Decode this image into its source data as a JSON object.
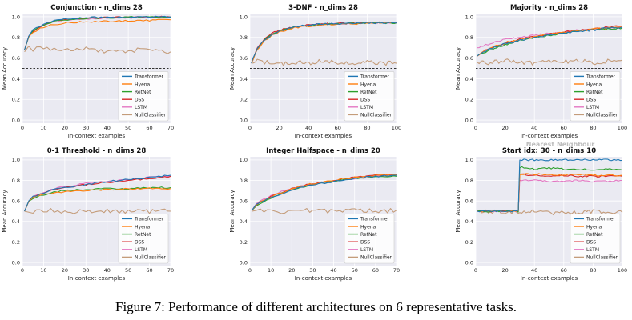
{
  "figure": {
    "caption": "Figure 7:  Performance of different architectures on 6 representative tasks.",
    "overlap_text": "Nearest Neighbour"
  },
  "series_styles": [
    {
      "name": "Transformer",
      "color": "#1f77b4"
    },
    {
      "name": "Hyena",
      "color": "#ff7f0e"
    },
    {
      "name": "RetNet",
      "color": "#2ca02c"
    },
    {
      "name": "DSS",
      "color": "#d62728"
    },
    {
      "name": "LSTM",
      "color": "#e377c2"
    },
    {
      "name": "NullClassifier",
      "color": "#c49c7a"
    }
  ],
  "chart_data": [
    {
      "type": "line",
      "title": "Conjunction - n_dims 28",
      "xlabel": "In-context examples",
      "ylabel": "Mean Accuracy",
      "xlim": [
        0,
        70
      ],
      "ylim": [
        -0.03,
        1.03
      ],
      "xticks": [
        0,
        10,
        20,
        30,
        40,
        50,
        60,
        70
      ],
      "yticks": [
        "0.0",
        "0.2",
        "0.4",
        "0.6",
        "0.8",
        "1.0"
      ],
      "baseline": 0.5,
      "legend": "lower-right",
      "x": [
        1,
        3,
        5,
        10,
        15,
        20,
        30,
        40,
        50,
        60,
        70
      ],
      "series": [
        {
          "name": "Transformer",
          "values": [
            0.68,
            0.82,
            0.87,
            0.93,
            0.96,
            0.975,
            0.99,
            0.995,
            0.995,
            0.998,
            0.998
          ]
        },
        {
          "name": "Hyena",
          "values": [
            0.68,
            0.8,
            0.85,
            0.9,
            0.925,
            0.94,
            0.95,
            0.955,
            0.96,
            0.965,
            0.97
          ]
        },
        {
          "name": "RetNet",
          "values": [
            0.68,
            0.81,
            0.86,
            0.92,
            0.95,
            0.97,
            0.985,
            0.99,
            0.995,
            0.995,
            0.995
          ]
        },
        {
          "name": "DSS",
          "values": [
            0.68,
            0.81,
            0.86,
            0.92,
            0.955,
            0.97,
            0.985,
            0.99,
            0.995,
            0.997,
            0.997
          ]
        },
        {
          "name": "LSTM",
          "values": [
            0.68,
            0.81,
            0.86,
            0.92,
            0.95,
            0.97,
            0.98,
            0.99,
            0.99,
            0.995,
            0.995
          ]
        },
        {
          "name": "NullClassifier",
          "values": [
            0.66,
            0.7,
            0.68,
            0.7,
            0.69,
            0.68,
            0.69,
            0.66,
            0.67,
            0.69,
            0.66
          ]
        }
      ]
    },
    {
      "type": "line",
      "title": "3-DNF - n_dims 28",
      "xlabel": "In-context examples",
      "ylabel": "Mean Accuracy",
      "xlim": [
        0,
        100
      ],
      "ylim": [
        -0.03,
        1.03
      ],
      "xticks": [
        0,
        20,
        40,
        60,
        80,
        100
      ],
      "yticks": [
        "0.0",
        "0.2",
        "0.4",
        "0.6",
        "0.8",
        "1.0"
      ],
      "baseline": 0.5,
      "legend": "lower-right",
      "x": [
        1,
        5,
        10,
        15,
        20,
        30,
        40,
        50,
        60,
        70,
        80,
        90,
        100
      ],
      "series": [
        {
          "name": "Transformer",
          "values": [
            0.55,
            0.7,
            0.78,
            0.83,
            0.86,
            0.9,
            0.92,
            0.93,
            0.93,
            0.94,
            0.94,
            0.94,
            0.94
          ]
        },
        {
          "name": "Hyena",
          "values": [
            0.55,
            0.68,
            0.77,
            0.82,
            0.85,
            0.89,
            0.91,
            0.92,
            0.93,
            0.93,
            0.935,
            0.94,
            0.94
          ]
        },
        {
          "name": "RetNet",
          "values": [
            0.55,
            0.69,
            0.78,
            0.83,
            0.86,
            0.9,
            0.915,
            0.925,
            0.93,
            0.935,
            0.94,
            0.94,
            0.94
          ]
        },
        {
          "name": "DSS",
          "values": [
            0.55,
            0.7,
            0.79,
            0.84,
            0.87,
            0.9,
            0.92,
            0.93,
            0.935,
            0.94,
            0.94,
            0.945,
            0.945
          ]
        },
        {
          "name": "LSTM",
          "values": [
            0.55,
            0.69,
            0.78,
            0.83,
            0.86,
            0.9,
            0.915,
            0.925,
            0.93,
            0.935,
            0.94,
            0.94,
            0.94
          ]
        },
        {
          "name": "NullClassifier",
          "values": [
            0.55,
            0.58,
            0.56,
            0.55,
            0.54,
            0.56,
            0.55,
            0.57,
            0.55,
            0.54,
            0.56,
            0.55,
            0.55
          ]
        }
      ]
    },
    {
      "type": "line",
      "title": "Majority - n_dims 28",
      "xlabel": "In-context examples",
      "ylabel": "Mean Accuracy",
      "xlim": [
        0,
        100
      ],
      "ylim": [
        -0.03,
        1.03
      ],
      "xticks": [
        0,
        20,
        40,
        60,
        80,
        100
      ],
      "yticks": [
        "0.0",
        "0.2",
        "0.4",
        "0.6",
        "0.8",
        "1.0"
      ],
      "baseline": 0.5,
      "legend": "lower-right",
      "x": [
        1,
        5,
        10,
        20,
        30,
        40,
        50,
        60,
        70,
        80,
        90,
        100
      ],
      "series": [
        {
          "name": "Transformer",
          "values": [
            0.62,
            0.66,
            0.69,
            0.74,
            0.77,
            0.8,
            0.82,
            0.84,
            0.86,
            0.87,
            0.89,
            0.9
          ]
        },
        {
          "name": "Hyena",
          "values": [
            0.62,
            0.66,
            0.7,
            0.75,
            0.78,
            0.8,
            0.83,
            0.85,
            0.86,
            0.88,
            0.89,
            0.9
          ]
        },
        {
          "name": "RetNet",
          "values": [
            0.62,
            0.65,
            0.68,
            0.73,
            0.77,
            0.8,
            0.82,
            0.84,
            0.86,
            0.87,
            0.88,
            0.89
          ]
        },
        {
          "name": "DSS",
          "values": [
            0.62,
            0.66,
            0.7,
            0.74,
            0.78,
            0.81,
            0.83,
            0.85,
            0.87,
            0.88,
            0.9,
            0.91
          ]
        },
        {
          "name": "LSTM",
          "values": [
            0.7,
            0.72,
            0.74,
            0.78,
            0.8,
            0.82,
            0.84,
            0.85,
            0.87,
            0.88,
            0.89,
            0.9
          ]
        },
        {
          "name": "NullClassifier",
          "values": [
            0.56,
            0.57,
            0.55,
            0.58,
            0.56,
            0.55,
            0.57,
            0.56,
            0.58,
            0.55,
            0.57,
            0.58
          ]
        }
      ]
    },
    {
      "type": "line",
      "title": "0-1 Threshold - n_dims 28",
      "xlabel": "In-context examples",
      "ylabel": "Mean Accuracy",
      "xlim": [
        0,
        70
      ],
      "ylim": [
        -0.03,
        1.03
      ],
      "xticks": [
        0,
        10,
        20,
        30,
        40,
        50,
        60,
        70
      ],
      "yticks": [
        "0.0",
        "0.2",
        "0.4",
        "0.6",
        "0.8",
        "1.0"
      ],
      "baseline": null,
      "legend": "lower-right",
      "x": [
        1,
        3,
        5,
        10,
        15,
        20,
        30,
        40,
        50,
        60,
        70
      ],
      "series": [
        {
          "name": "Transformer",
          "values": [
            0.5,
            0.6,
            0.64,
            0.68,
            0.71,
            0.73,
            0.76,
            0.79,
            0.81,
            0.83,
            0.85
          ]
        },
        {
          "name": "Hyena",
          "values": [
            0.5,
            0.6,
            0.63,
            0.66,
            0.68,
            0.69,
            0.7,
            0.71,
            0.72,
            0.72,
            0.72
          ]
        },
        {
          "name": "RetNet",
          "values": [
            0.5,
            0.6,
            0.63,
            0.66,
            0.69,
            0.7,
            0.71,
            0.72,
            0.72,
            0.73,
            0.73
          ]
        },
        {
          "name": "DSS",
          "values": [
            0.5,
            0.6,
            0.64,
            0.68,
            0.71,
            0.73,
            0.76,
            0.78,
            0.8,
            0.82,
            0.84
          ]
        },
        {
          "name": "LSTM",
          "values": [
            0.5,
            0.6,
            0.64,
            0.68,
            0.72,
            0.74,
            0.77,
            0.79,
            0.81,
            0.83,
            0.84
          ]
        },
        {
          "name": "NullClassifier",
          "values": [
            0.5,
            0.51,
            0.49,
            0.5,
            0.51,
            0.49,
            0.5,
            0.5,
            0.49,
            0.5,
            0.5
          ]
        }
      ]
    },
    {
      "type": "line",
      "title": "Integer Halfspace - n_dims 20",
      "xlabel": "In-context examples",
      "ylabel": "Mean Accuracy",
      "xlim": [
        0,
        70
      ],
      "ylim": [
        -0.03,
        1.03
      ],
      "xticks": [
        0,
        10,
        20,
        30,
        40,
        50,
        60,
        70
      ],
      "yticks": [
        "0.0",
        "0.2",
        "0.4",
        "0.6",
        "0.8",
        "1.0"
      ],
      "baseline": null,
      "legend": "lower-right",
      "x": [
        1,
        3,
        5,
        10,
        15,
        20,
        30,
        40,
        50,
        60,
        70
      ],
      "series": [
        {
          "name": "Transformer",
          "values": [
            0.51,
            0.56,
            0.59,
            0.63,
            0.67,
            0.71,
            0.76,
            0.79,
            0.82,
            0.84,
            0.85
          ]
        },
        {
          "name": "Hyena",
          "values": [
            0.51,
            0.56,
            0.59,
            0.64,
            0.68,
            0.72,
            0.77,
            0.8,
            0.83,
            0.85,
            0.86
          ]
        },
        {
          "name": "RetNet",
          "values": [
            0.51,
            0.55,
            0.58,
            0.63,
            0.67,
            0.71,
            0.76,
            0.79,
            0.82,
            0.83,
            0.84
          ]
        },
        {
          "name": "DSS",
          "values": [
            0.51,
            0.56,
            0.59,
            0.64,
            0.68,
            0.72,
            0.77,
            0.8,
            0.83,
            0.85,
            0.86
          ]
        },
        {
          "name": "LSTM",
          "values": [
            0.51,
            0.57,
            0.6,
            0.65,
            0.69,
            0.72,
            0.77,
            0.8,
            0.82,
            0.84,
            0.85
          ]
        },
        {
          "name": "NullClassifier",
          "values": [
            0.5,
            0.52,
            0.5,
            0.51,
            0.49,
            0.5,
            0.51,
            0.5,
            0.52,
            0.5,
            0.51
          ]
        }
      ]
    },
    {
      "type": "line",
      "title": "Start idx: 30 - n_dims 10",
      "xlabel": "In-context examples",
      "ylabel": "Mean Accuracy",
      "xlim": [
        0,
        100
      ],
      "ylim": [
        -0.03,
        1.03
      ],
      "xticks": [
        0,
        20,
        40,
        60,
        80,
        100
      ],
      "yticks": [
        "0.0",
        "0.2",
        "0.4",
        "0.6",
        "0.8",
        "1.0"
      ],
      "baseline": null,
      "legend": "lower-right",
      "x": [
        1,
        10,
        20,
        29,
        30,
        40,
        50,
        60,
        70,
        80,
        90,
        100
      ],
      "series": [
        {
          "name": "Transformer",
          "values": [
            0.5,
            0.5,
            0.5,
            0.5,
            1.0,
            1.0,
            1.0,
            1.0,
            1.0,
            1.0,
            1.0,
            0.995
          ]
        },
        {
          "name": "Hyena",
          "values": [
            0.5,
            0.5,
            0.5,
            0.5,
            0.86,
            0.86,
            0.86,
            0.85,
            0.86,
            0.85,
            0.85,
            0.85
          ]
        },
        {
          "name": "RetNet",
          "values": [
            0.5,
            0.5,
            0.5,
            0.5,
            0.93,
            0.91,
            0.92,
            0.91,
            0.91,
            0.9,
            0.91,
            0.9
          ]
        },
        {
          "name": "DSS",
          "values": [
            0.5,
            0.5,
            0.5,
            0.5,
            0.86,
            0.85,
            0.84,
            0.85,
            0.84,
            0.84,
            0.84,
            0.84
          ]
        },
        {
          "name": "LSTM",
          "values": [
            0.5,
            0.5,
            0.5,
            0.5,
            0.8,
            0.8,
            0.79,
            0.79,
            0.8,
            0.79,
            0.79,
            0.8
          ]
        },
        {
          "name": "NullClassifier",
          "values": [
            0.5,
            0.49,
            0.5,
            0.49,
            0.5,
            0.49,
            0.48,
            0.5,
            0.49,
            0.5,
            0.49,
            0.49
          ]
        }
      ]
    }
  ]
}
